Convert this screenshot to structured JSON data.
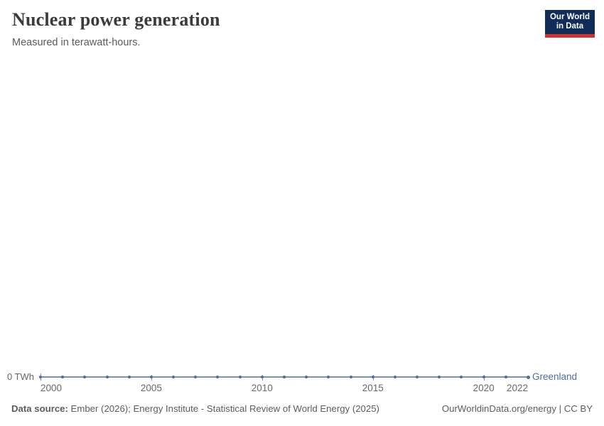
{
  "header": {
    "title": "Nuclear power generation",
    "subtitle": "Measured in terawatt-hours.",
    "logo": {
      "line1": "Our World",
      "line2": "in Data"
    }
  },
  "chart_data": {
    "type": "line",
    "title": "Nuclear power generation",
    "subtitle": "Measured in terawatt-hours.",
    "unit": "terawatt-hours",
    "x": [
      2000,
      2001,
      2002,
      2003,
      2004,
      2005,
      2006,
      2007,
      2008,
      2009,
      2010,
      2011,
      2012,
      2013,
      2014,
      2015,
      2016,
      2017,
      2018,
      2019,
      2020,
      2021,
      2022
    ],
    "series": [
      {
        "name": "Greenland",
        "color": "#4c6ea3",
        "values": [
          0,
          0,
          0,
          0,
          0,
          0,
          0,
          0,
          0,
          0,
          0,
          0,
          0,
          0,
          0,
          0,
          0,
          0,
          0,
          0,
          0,
          0,
          0
        ]
      }
    ],
    "x_ticks": [
      "2000",
      "2005",
      "2010",
      "2015",
      "2020",
      "2022"
    ],
    "y_axis": {
      "zero_label": "0 TWh"
    },
    "ylim": [
      0,
      0
    ],
    "grid": false,
    "legend_position": "end-of-line-label"
  },
  "footer": {
    "datasource_label": "Data source:",
    "datasource_text": " Ember (2026); Energy Institute - Statistical Review of World Energy (2025)",
    "attribution": "OurWorldinData.org/energy | CC BY"
  },
  "colors": {
    "series_blue": "#4c6ea3",
    "logo_background": "#102d59",
    "logo_red": "#d4302f",
    "axis_text": "#68686d",
    "title_text": "#3b3b3b"
  }
}
